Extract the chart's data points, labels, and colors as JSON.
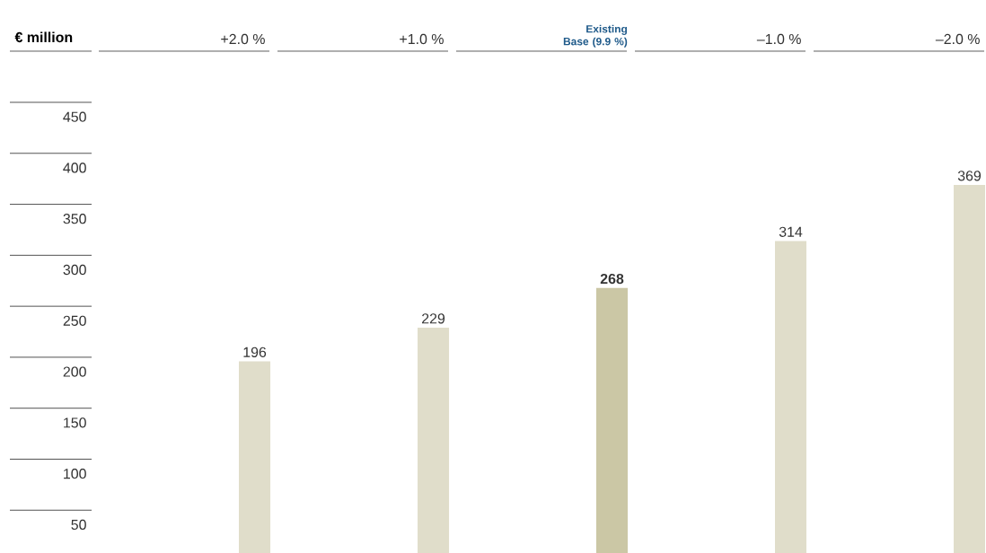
{
  "chart_data": {
    "type": "bar",
    "ylabel": "€ million",
    "categories": [
      "+2.0 %",
      "+1.0 %",
      "Existing Base (9.9 %)",
      "–1.0 %",
      "–2.0 %"
    ],
    "values": [
      196,
      229,
      268,
      314,
      369
    ],
    "colors": [
      "#e0ddca",
      "#e0ddca",
      "#cbc7a5",
      "#e0ddca",
      "#e0ddca"
    ],
    "value_labels": [
      "196",
      "229",
      "**268**",
      "314",
      "369"
    ],
    "ylim": [
      8,
      450
    ],
    "yticks": [
      50,
      100,
      150,
      200,
      250,
      300,
      350,
      400,
      450
    ],
    "grid": false
  }
}
